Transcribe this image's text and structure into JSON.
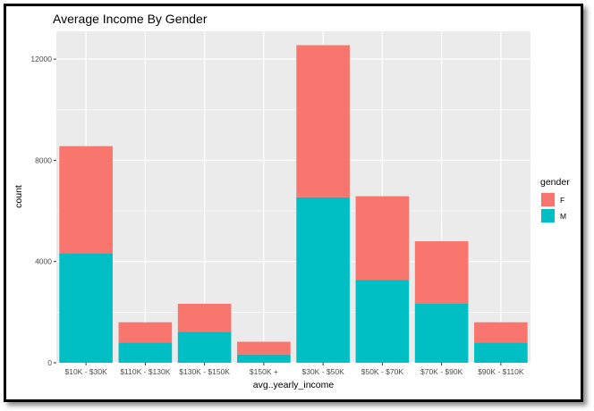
{
  "chart_data": {
    "type": "bar",
    "stacked": true,
    "title": "Average Income By Gender",
    "xlabel": "avg..yearly_income",
    "ylabel": "count",
    "categories": [
      "$10K - $30K",
      "$110K - $130K",
      "$130K - $150K",
      "$150K +",
      "$30K - $50K",
      "$50K - $70K",
      "$70K - $90K",
      "$90K - $110K"
    ],
    "series": [
      {
        "name": "M",
        "color": "#00BFC4",
        "values": [
          4330,
          800,
          1230,
          330,
          6540,
          3280,
          2330,
          800
        ]
      },
      {
        "name": "F",
        "color": "#F8766D",
        "values": [
          4230,
          800,
          1100,
          500,
          6010,
          3300,
          2470,
          800
        ]
      }
    ],
    "ylim": [
      0,
      13100
    ],
    "yticks": [
      0,
      4000,
      8000,
      12000
    ],
    "legend": {
      "title": "gender",
      "entries": [
        "F",
        "M"
      ],
      "placement": "right"
    },
    "panel_background": "#EBEBEB",
    "grid_color": "#FFFFFF"
  }
}
